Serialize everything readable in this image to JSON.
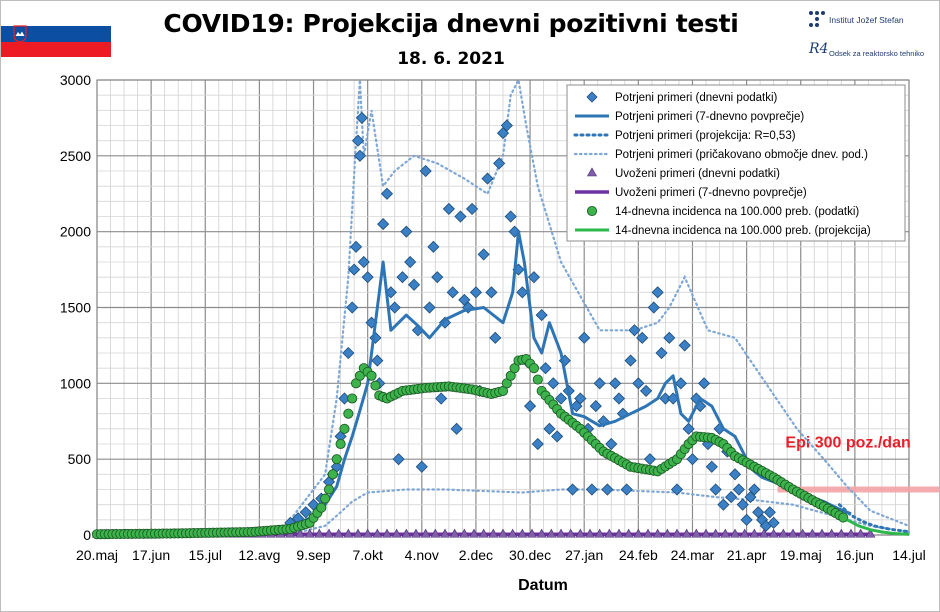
{
  "header": {
    "title": "COVID19: Projekcija dnevni pozitivni testi",
    "subtitle": "18. 6. 2021",
    "logo_ijs": "Institut Jožef Stefan",
    "logo_r4": "Odsek za reaktorsko tehniko",
    "logo_r4_mark": "R4"
  },
  "colors": {
    "blue": "#2e75b6",
    "diamond": "#3b7fc4",
    "green": "#2db84b",
    "green_marker": "#3cb44b",
    "purple": "#7030a0",
    "threshold": "#f4a3a6"
  },
  "chart_data": {
    "type": "scatter",
    "title": "COVID19: Projekcija dnevni pozitivni testi",
    "subtitle": "18. 6. 2021",
    "xlabel": "Datum",
    "ylabel": "",
    "ylim": [
      0,
      3000
    ],
    "yticks": [
      0,
      500,
      1000,
      1500,
      2000,
      2500,
      3000
    ],
    "xticks": [
      "20.maj",
      "17.jun",
      "15.jul",
      "12.avg",
      "9.sep",
      "7.okt",
      "4.nov",
      "2.dec",
      "30.dec",
      "27.jan",
      "24.feb",
      "24.mar",
      "21.apr",
      "19.maj",
      "16.jun",
      "14.jul"
    ],
    "x_range_days": [
      0,
      420
    ],
    "grid": true,
    "legend_position": "top-right",
    "annotation": {
      "text": "Epi 300 poz./dan",
      "y": 300
    },
    "legend": [
      "Potrjeni primeri (dnevni podatki)",
      "Potrjeni primeri (7-dnevno povprečje)",
      "Potrjeni primeri (projekcija: R=0,53)",
      "Potrjeni primeri (pričakovano območje dnev. pod.)",
      "Uvoženi primeri (dnevni podatki)",
      "Uvoženi primeri (7-dnevno povprečje)",
      "14-dnevna incidenca na 100.000 preb. (podatki)",
      "14-dnevna incidenca na 100.000 preb. (projekcija)"
    ],
    "series": [
      {
        "name": "Potrjeni primeri (7-dnevno povprečje)",
        "x": [
          0,
          20,
          40,
          60,
          80,
          100,
          110,
          118,
          124,
          128,
          132,
          136,
          140,
          143,
          146,
          148,
          152,
          156,
          160,
          166,
          172,
          180,
          190,
          200,
          210,
          215,
          218,
          221,
          224,
          226,
          230,
          234,
          240,
          246,
          252,
          260,
          268,
          276,
          284,
          290,
          294,
          298,
          302,
          306,
          312,
          318,
          324,
          330,
          336,
          340,
          344,
          350,
          360,
          368,
          376,
          384,
          390
        ],
        "y": [
          5,
          8,
          15,
          20,
          30,
          60,
          110,
          200,
          320,
          500,
          650,
          820,
          1000,
          1300,
          1600,
          1800,
          1350,
          1400,
          1450,
          1380,
          1300,
          1420,
          1480,
          1500,
          1400,
          1600,
          2000,
          1800,
          1500,
          1300,
          1200,
          1400,
          1200,
          800,
          780,
          720,
          750,
          800,
          850,
          900,
          1000,
          1050,
          800,
          750,
          900,
          850,
          700,
          650,
          500,
          420,
          380,
          350,
          300,
          260,
          220,
          170,
          140
        ]
      },
      {
        "name": "Potrjeni primeri (projekcija: R=0,53)",
        "x": [
          384,
          390,
          396,
          402,
          410,
          420
        ],
        "y": [
          200,
          130,
          90,
          60,
          38,
          22
        ]
      },
      {
        "name": "Potrjeni primeri (pričakovano območje dnev. pod.)",
        "upper_x": [
          100,
          118,
          124,
          130,
          134,
          136,
          138,
          142,
          148,
          154,
          164,
          176,
          190,
          202,
          210,
          214,
          218,
          222,
          228,
          240,
          260,
          278,
          290,
          296,
          304,
          316,
          330,
          346,
          362,
          376,
          388,
          400,
          420
        ],
        "upper_y": [
          100,
          400,
          900,
          1700,
          2600,
          3000,
          2500,
          2800,
          2300,
          2400,
          2500,
          2450,
          2350,
          2250,
          2500,
          2900,
          3000,
          2700,
          2300,
          1800,
          1350,
          1350,
          1400,
          1500,
          1700,
          1350,
          1300,
          1000,
          700,
          500,
          320,
          160,
          60
        ],
        "lower_x": [
          100,
          118,
          126,
          132,
          140,
          150,
          160,
          180,
          200,
          220,
          240,
          260,
          280,
          300,
          320,
          340,
          360,
          380,
          400,
          420
        ],
        "lower_y": [
          5,
          60,
          150,
          220,
          280,
          290,
          300,
          300,
          290,
          280,
          300,
          300,
          290,
          280,
          250,
          230,
          200,
          130,
          60,
          20
        ]
      },
      {
        "name": "Uvoženi primeri (7-dnevno povprečje)",
        "x": [
          0,
          400
        ],
        "y": [
          5,
          5
        ]
      },
      {
        "name": "14-dnevna incidenca na 100.000 preb. (podatki)",
        "x": [
          0,
          40,
          80,
          100,
          110,
          116,
          120,
          124,
          128,
          132,
          134,
          138,
          142,
          146,
          150,
          158,
          170,
          182,
          194,
          204,
          210,
          214,
          218,
          222,
          226,
          230,
          240,
          250,
          262,
          276,
          290,
          300,
          306,
          310,
          318,
          324,
          330,
          340,
          350,
          360,
          370,
          380,
          388
        ],
        "y": [
          5,
          10,
          20,
          40,
          80,
          180,
          300,
          500,
          700,
          900,
          1000,
          1100,
          1050,
          920,
          900,
          950,
          970,
          980,
          960,
          930,
          950,
          1050,
          1150,
          1160,
          1100,
          950,
          800,
          700,
          550,
          450,
          420,
          500,
          600,
          650,
          640,
          600,
          520,
          450,
          380,
          300,
          230,
          160,
          100
        ]
      },
      {
        "name": "14-dnevna incidenca na 100.000 preb. (projekcija)",
        "x": [
          388,
          394,
          400,
          406,
          412,
          420
        ],
        "y": [
          100,
          60,
          35,
          20,
          10,
          5
        ]
      }
    ],
    "scatter_points": {
      "Potrjeni primeri (dnevni podatki)": [
        [
          100,
          80
        ],
        [
          104,
          110
        ],
        [
          108,
          150
        ],
        [
          112,
          200
        ],
        [
          116,
          240
        ],
        [
          120,
          350
        ],
        [
          122,
          400
        ],
        [
          124,
          450
        ],
        [
          126,
          650
        ],
        [
          128,
          900
        ],
        [
          130,
          1200
        ],
        [
          132,
          1500
        ],
        [
          133,
          1750
        ],
        [
          134,
          1900
        ],
        [
          135,
          2600
        ],
        [
          136,
          2500
        ],
        [
          137,
          2750
        ],
        [
          138,
          1800
        ],
        [
          140,
          1700
        ],
        [
          142,
          1400
        ],
        [
          144,
          1300
        ],
        [
          145,
          1150
        ],
        [
          146,
          1000
        ],
        [
          148,
          2050
        ],
        [
          150,
          2250
        ],
        [
          152,
          1600
        ],
        [
          154,
          1500
        ],
        [
          156,
          500
        ],
        [
          158,
          1700
        ],
        [
          160,
          2000
        ],
        [
          162,
          1800
        ],
        [
          164,
          1650
        ],
        [
          166,
          1350
        ],
        [
          168,
          450
        ],
        [
          170,
          2400
        ],
        [
          172,
          1500
        ],
        [
          174,
          1900
        ],
        [
          176,
          1700
        ],
        [
          178,
          900
        ],
        [
          180,
          1400
        ],
        [
          182,
          2150
        ],
        [
          184,
          1600
        ],
        [
          186,
          700
        ],
        [
          188,
          2100
        ],
        [
          190,
          1550
        ],
        [
          192,
          1500
        ],
        [
          194,
          2150
        ],
        [
          196,
          1600
        ],
        [
          198,
          950
        ],
        [
          200,
          1850
        ],
        [
          202,
          2350
        ],
        [
          204,
          1600
        ],
        [
          206,
          1300
        ],
        [
          208,
          2450
        ],
        [
          210,
          2650
        ],
        [
          212,
          2700
        ],
        [
          214,
          2100
        ],
        [
          216,
          2000
        ],
        [
          218,
          1750
        ],
        [
          220,
          1600
        ],
        [
          222,
          1150
        ],
        [
          224,
          850
        ],
        [
          226,
          1700
        ],
        [
          228,
          600
        ],
        [
          230,
          1450
        ],
        [
          232,
          1100
        ],
        [
          234,
          700
        ],
        [
          236,
          1000
        ],
        [
          238,
          650
        ],
        [
          240,
          900
        ],
        [
          242,
          1150
        ],
        [
          244,
          950
        ],
        [
          246,
          300
        ],
        [
          248,
          850
        ],
        [
          250,
          900
        ],
        [
          252,
          1300
        ],
        [
          254,
          700
        ],
        [
          256,
          300
        ],
        [
          258,
          850
        ],
        [
          260,
          1000
        ],
        [
          262,
          750
        ],
        [
          264,
          300
        ],
        [
          266,
          600
        ],
        [
          268,
          1000
        ],
        [
          270,
          900
        ],
        [
          272,
          800
        ],
        [
          274,
          300
        ],
        [
          276,
          1150
        ],
        [
          278,
          1350
        ],
        [
          280,
          1000
        ],
        [
          282,
          1300
        ],
        [
          284,
          950
        ],
        [
          286,
          500
        ],
        [
          288,
          1500
        ],
        [
          290,
          1600
        ],
        [
          292,
          1200
        ],
        [
          294,
          900
        ],
        [
          296,
          1300
        ],
        [
          298,
          900
        ],
        [
          300,
          300
        ],
        [
          302,
          1000
        ],
        [
          304,
          1250
        ],
        [
          306,
          700
        ],
        [
          308,
          500
        ],
        [
          310,
          900
        ],
        [
          312,
          850
        ],
        [
          314,
          1000
        ],
        [
          316,
          600
        ],
        [
          318,
          450
        ],
        [
          320,
          300
        ],
        [
          322,
          700
        ],
        [
          324,
          200
        ],
        [
          326,
          550
        ],
        [
          328,
          250
        ],
        [
          330,
          400
        ],
        [
          332,
          300
        ],
        [
          334,
          200
        ],
        [
          336,
          100
        ],
        [
          338,
          250
        ],
        [
          340,
          300
        ],
        [
          342,
          150
        ],
        [
          344,
          100
        ],
        [
          346,
          60
        ],
        [
          348,
          150
        ],
        [
          350,
          80
        ]
      ]
    }
  }
}
